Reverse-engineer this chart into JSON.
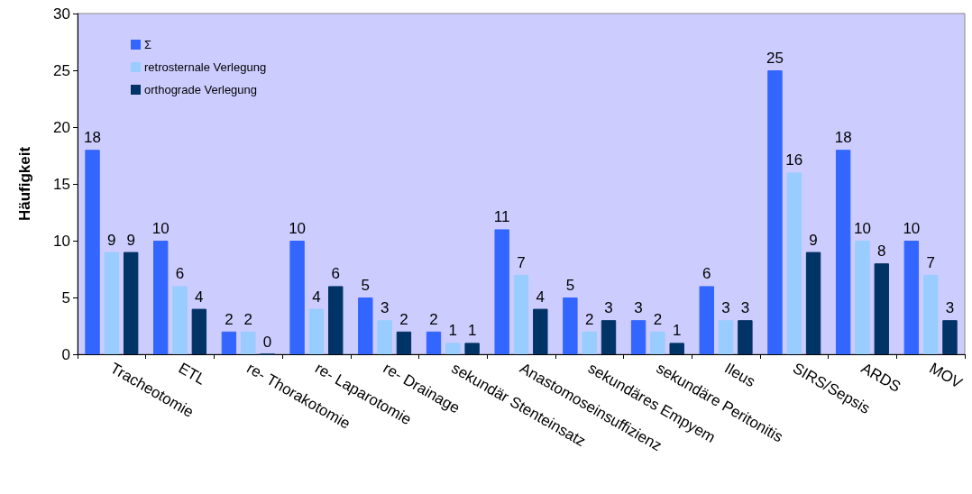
{
  "chart_data": {
    "type": "bar",
    "ylabel": "Häufigkeit",
    "categories": [
      "Tracheotomie",
      "ETL",
      "re- Thorakotomie",
      "re- Laparotomie",
      "re- Drainage",
      "sekundär Stenteinsatz",
      "Anastomoseinsuffizienz",
      "sekundäres Empyem",
      "sekundäre Peritonitis",
      "Ileus",
      "SIRS/Sepsis",
      "ARDS",
      "MOV"
    ],
    "series": [
      {
        "name": "Σ",
        "color": "#3366ff",
        "values": [
          18,
          10,
          2,
          10,
          5,
          2,
          11,
          5,
          3,
          6,
          25,
          18,
          10
        ]
      },
      {
        "name": "retrosternale Verlegung",
        "color": "#99ccff",
        "values": [
          9,
          6,
          2,
          4,
          3,
          1,
          7,
          2,
          2,
          3,
          16,
          10,
          7
        ]
      },
      {
        "name": "orthograde Verlegung",
        "color": "#003366",
        "values": [
          9,
          4,
          0,
          6,
          2,
          1,
          4,
          3,
          1,
          3,
          9,
          8,
          3
        ]
      }
    ],
    "ylim": [
      0,
      30
    ],
    "yticks": [
      0,
      5,
      10,
      15,
      20,
      25,
      30
    ],
    "grid": false,
    "legend": "top left",
    "data_labels": true
  }
}
